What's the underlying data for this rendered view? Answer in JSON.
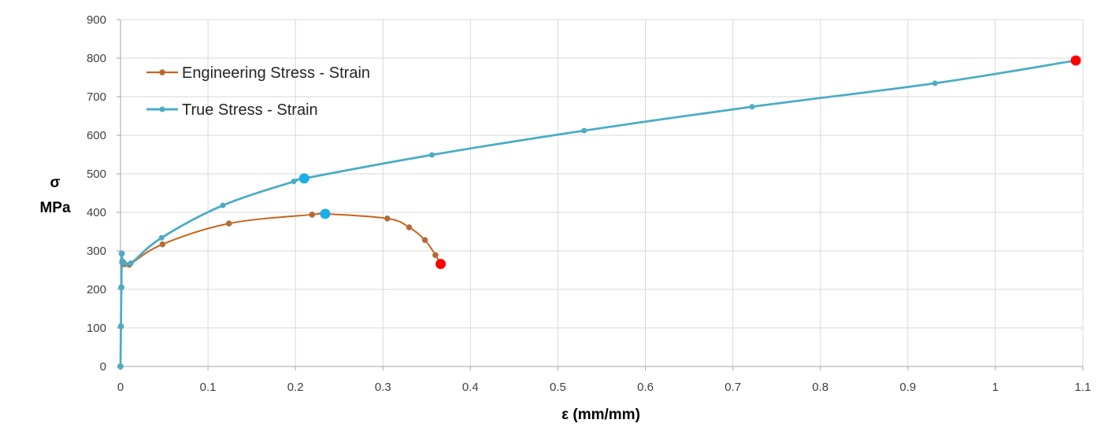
{
  "chart_data": {
    "type": "line",
    "xlabel": "ε (mm/mm)",
    "ylabel": [
      "σ",
      "MPa"
    ],
    "xlim": [
      0,
      1.1
    ],
    "ylim": [
      0,
      900
    ],
    "xticks": [
      0,
      0.1,
      0.2,
      0.3,
      0.4,
      0.5,
      0.6,
      0.7,
      0.8,
      0.9,
      1,
      1.1
    ],
    "yticks": [
      0,
      100,
      200,
      300,
      400,
      500,
      600,
      700,
      800,
      900
    ],
    "grid": "both",
    "legend_position": "top-left",
    "series": [
      {
        "name": "Engineering Stress - Strain",
        "color": "#C8651B",
        "x": [
          0,
          0.0005,
          0.001,
          0.0015,
          0.002,
          0.003,
          0.01,
          0.048,
          0.124,
          0.219,
          0.305,
          0.33,
          0.348,
          0.36
        ],
        "y": [
          0,
          104,
          205,
          293,
          270,
          265,
          264,
          317,
          371,
          394,
          384,
          361,
          328,
          289
        ],
        "highlight_max": {
          "x": 0.234,
          "y": 396,
          "color": "#1AAFE6"
        },
        "highlight_end": {
          "x": 0.366,
          "y": 266,
          "color": "#FF0000"
        }
      },
      {
        "name": "True Stress - Strain",
        "color": "#4BACC6",
        "x": [
          0,
          0.0005,
          0.001,
          0.0015,
          0.002,
          0.004,
          0.012,
          0.047,
          0.117,
          0.198,
          0.356,
          0.53,
          0.722,
          0.931
        ],
        "y": [
          0,
          104,
          205,
          293,
          274,
          270,
          268,
          334,
          418,
          480,
          549,
          612,
          674,
          735
        ],
        "highlight_max": {
          "x": 0.21,
          "y": 488,
          "color": "#1AAFE6"
        },
        "highlight_end": {
          "x": 1.092,
          "y": 794,
          "color": "#FF0000"
        }
      }
    ]
  }
}
